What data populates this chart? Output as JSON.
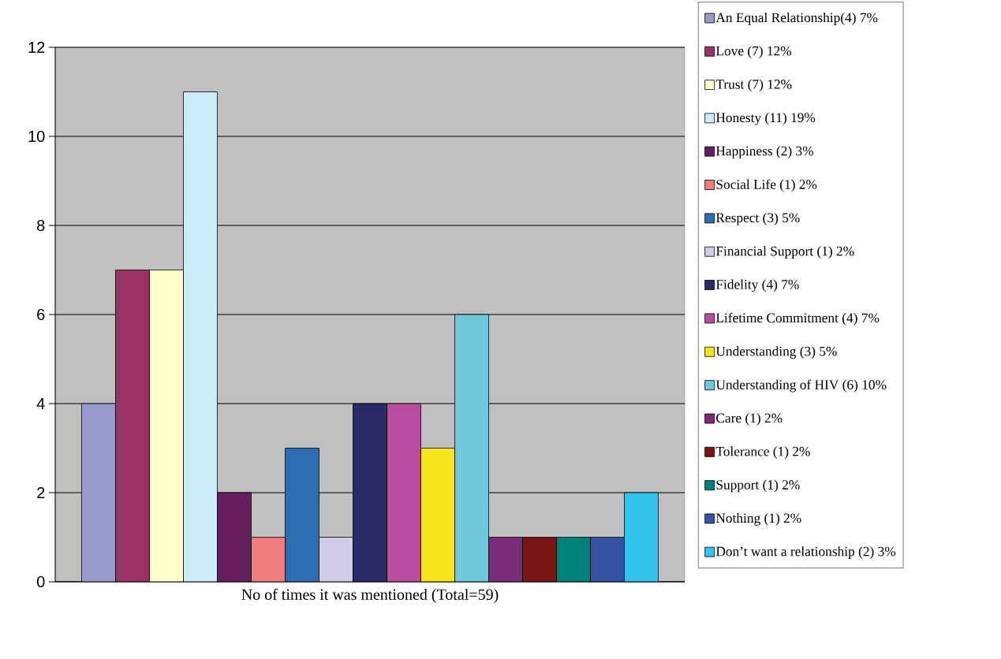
{
  "chart_data": {
    "type": "bar",
    "xlabel": "No of times it was mentioned (Total=59)",
    "categories": [
      null
    ],
    "ylim": [
      0,
      12
    ],
    "yticks": [
      0,
      2,
      4,
      6,
      8,
      10,
      12
    ],
    "grid": "y",
    "legend": "right",
    "series": [
      {
        "name": "An Equal Relationship(4) 7%",
        "color": "#9999cc",
        "values": [
          4
        ]
      },
      {
        "name": "Love (7) 12%",
        "color": "#993366",
        "values": [
          7
        ]
      },
      {
        "name": "Trust (7) 12%",
        "color": "#ffffcc",
        "values": [
          7
        ]
      },
      {
        "name": "Honesty (11) 19%",
        "color": "#ccecf7",
        "values": [
          11
        ]
      },
      {
        "name": "Happiness (2) 3%",
        "color": "#661f5e",
        "values": [
          2
        ]
      },
      {
        "name": "Social Life (1) 2%",
        "color": "#f07c7c",
        "values": [
          1
        ]
      },
      {
        "name": "Respect (3) 5%",
        "color": "#2e6db4",
        "values": [
          3
        ]
      },
      {
        "name": "Financial Support (1) 2%",
        "color": "#cfcce8",
        "values": [
          1
        ]
      },
      {
        "name": "Fidelity (4) 7%",
        "color": "#2a2a66",
        "values": [
          4
        ]
      },
      {
        "name": "Lifetime Commitment (4) 7%",
        "color": "#b84da0",
        "values": [
          4
        ]
      },
      {
        "name": "Understanding (3) 5%",
        "color": "#f5e51a",
        "values": [
          3
        ]
      },
      {
        "name": "Understanding of HIV (6) 10%",
        "color": "#6fc9db",
        "values": [
          6
        ]
      },
      {
        "name": "Care (1) 2%",
        "color": "#7a2b7a",
        "values": [
          1
        ]
      },
      {
        "name": "Tolerance (1) 2%",
        "color": "#7a1515",
        "values": [
          1
        ]
      },
      {
        "name": "Support (1) 2%",
        "color": "#00807a",
        "values": [
          1
        ]
      },
      {
        "name": "Nothing (1) 2%",
        "color": "#3352a3",
        "values": [
          1
        ]
      },
      {
        "name": "Don’t want a relationship (2) 3%",
        "color": "#33c4ef",
        "values": [
          2
        ]
      }
    ]
  }
}
